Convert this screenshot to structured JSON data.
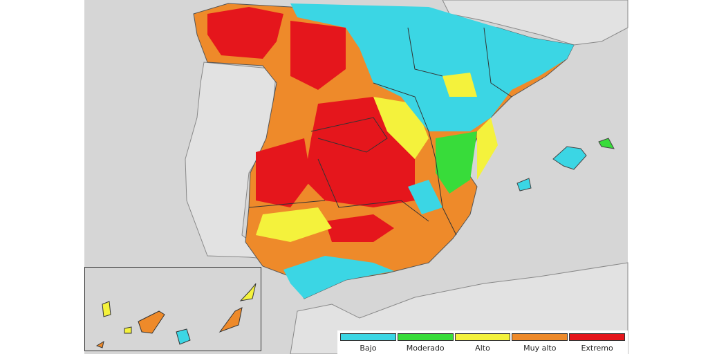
{
  "legend": {
    "items": [
      {
        "label": "Bajo",
        "color": "#3bd6e4"
      },
      {
        "label": "Moderado",
        "color": "#38dc3a"
      },
      {
        "label": "Alto",
        "color": "#f4f23c"
      },
      {
        "label": "Muy alto",
        "color": "#ee8a2a"
      },
      {
        "label": "Extremo",
        "color": "#e5161c"
      }
    ]
  }
}
